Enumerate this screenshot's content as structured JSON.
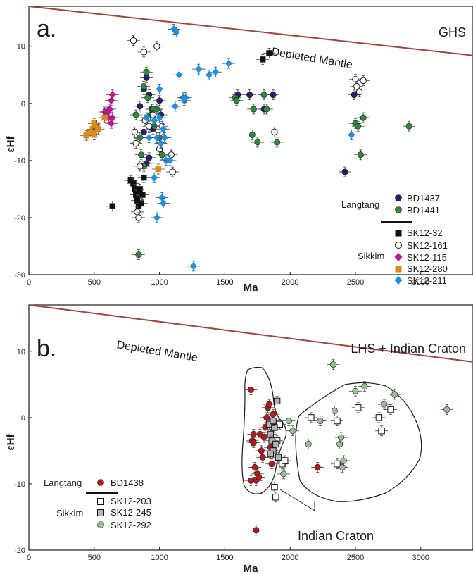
{
  "chart_data": [
    {
      "type": "scatter",
      "panel_label": "a.",
      "region_label": "GHS",
      "xlabel": "Ma",
      "ylabel": "εHf",
      "xlim": [
        0,
        3400
      ],
      "ylim": [
        -30,
        17
      ],
      "x_ticks": [
        "0",
        "500",
        "1000",
        "1500",
        "2000",
        "2500",
        "3000"
      ],
      "y_ticks": [
        "10",
        "0",
        "-10",
        "-20",
        "-30"
      ],
      "reference_line": {
        "label": "Depleted Mantle",
        "color": "#a0443c",
        "points": [
          [
            0,
            17
          ],
          [
            3400,
            8.4
          ]
        ]
      },
      "legend": {
        "groups": [
          {
            "group": "Langtang",
            "entries": [
              "BD1437",
              "BD1441"
            ]
          },
          {
            "group": "Sikkim",
            "entries": [
              "SK12-32",
              "SK12-161",
              "SK12-115",
              "SK12-280",
              "SK12-211"
            ]
          }
        ]
      },
      "series": [
        {
          "name": "BD1437",
          "marker": "circle",
          "color": "#2b1d6e",
          "points": [
            [
              850,
              -0.5
            ],
            [
              880,
              2.5
            ],
            [
              900,
              4.5
            ],
            [
              920,
              1.5
            ],
            [
              940,
              -1
            ],
            [
              950,
              -4.5
            ],
            [
              1000,
              0.5
            ],
            [
              1010,
              -2
            ],
            [
              880,
              -5
            ],
            [
              1600,
              1.5
            ],
            [
              1690,
              1.5
            ],
            [
              1800,
              -1
            ],
            [
              1870,
              1.5
            ],
            [
              2420,
              -12
            ],
            [
              2490,
              1.5
            ],
            [
              900,
              -10.5
            ],
            [
              920,
              -9.5
            ]
          ]
        },
        {
          "name": "BD1441",
          "marker": "circle",
          "color": "#2e8b3a",
          "points": [
            [
              820,
              -2
            ],
            [
              850,
              -6
            ],
            [
              880,
              3
            ],
            [
              900,
              5.5
            ],
            [
              910,
              1
            ],
            [
              930,
              -2
            ],
            [
              960,
              -4
            ],
            [
              980,
              -1
            ],
            [
              1000,
              -6
            ],
            [
              1020,
              -9
            ],
            [
              830,
              -16
            ],
            [
              840,
              -26.5
            ],
            [
              860,
              -9
            ],
            [
              1580,
              1
            ],
            [
              1590,
              0.5
            ],
            [
              1710,
              -5.5
            ],
            [
              1720,
              -1
            ],
            [
              1750,
              -6.8
            ],
            [
              1800,
              1.5
            ],
            [
              1820,
              -1
            ],
            [
              1900,
              -6.8
            ],
            [
              2500,
              -3.5
            ],
            [
              2520,
              -4
            ],
            [
              2540,
              -9
            ],
            [
              2560,
              -2.5
            ],
            [
              2910,
              -4
            ],
            [
              950,
              -1
            ],
            [
              880,
              -11
            ]
          ]
        },
        {
          "name": "SK12-32",
          "marker": "square",
          "color": "#111111",
          "points": [
            [
              640,
              -18
            ],
            [
              780,
              -13.5
            ],
            [
              800,
              -14
            ],
            [
              810,
              -15
            ],
            [
              820,
              -16
            ],
            [
              830,
              -17
            ],
            [
              840,
              -18
            ],
            [
              850,
              -15
            ],
            [
              860,
              -17.5
            ],
            [
              870,
              -16
            ],
            [
              880,
              -13
            ],
            [
              1790,
              7.7
            ],
            [
              1840,
              8.8
            ]
          ]
        },
        {
          "name": "SK12-161",
          "marker": "open-circle",
          "color": "#111111",
          "points": [
            [
              800,
              11
            ],
            [
              810,
              -5
            ],
            [
              820,
              -7
            ],
            [
              830,
              -19
            ],
            [
              840,
              -20
            ],
            [
              850,
              -11
            ],
            [
              880,
              9
            ],
            [
              890,
              -3
            ],
            [
              920,
              -4
            ],
            [
              950,
              -2
            ],
            [
              980,
              10
            ],
            [
              1000,
              -8
            ],
            [
              1020,
              -4
            ],
            [
              1090,
              -9
            ],
            [
              1100,
              -12
            ],
            [
              1880,
              -5
            ],
            [
              2500,
              4.2
            ],
            [
              2510,
              3
            ],
            [
              2530,
              2
            ],
            [
              2560,
              4
            ]
          ]
        },
        {
          "name": "SK12-115",
          "marker": "diamond",
          "color": "#c0148c",
          "points": [
            [
              580,
              -1.5
            ],
            [
              590,
              -2.5
            ],
            [
              600,
              -1.5
            ],
            [
              610,
              -2.5
            ],
            [
              620,
              -1
            ],
            [
              630,
              0.5
            ],
            [
              640,
              1.5
            ],
            [
              640,
              -2.5
            ],
            [
              630,
              -3.5
            ]
          ]
        },
        {
          "name": "SK12-280",
          "marker": "square",
          "color": "#d98c1a",
          "points": [
            [
              440,
              -5.6
            ],
            [
              470,
              -5
            ],
            [
              490,
              -4.5
            ],
            [
              500,
              -5.5
            ],
            [
              500,
              -3.5
            ],
            [
              520,
              -3.8
            ],
            [
              530,
              -4.5
            ],
            [
              580,
              -2.5
            ],
            [
              990,
              -11.5
            ]
          ]
        },
        {
          "name": "SK12-211",
          "marker": "diamond",
          "color": "#1e90e0",
          "points": [
            [
              1110,
              13
            ],
            [
              1130,
              12.5
            ],
            [
              1120,
              -0.5
            ],
            [
              1150,
              5
            ],
            [
              1180,
              1
            ],
            [
              1190,
              0.5
            ],
            [
              1200,
              1
            ],
            [
              1260,
              -28.5
            ],
            [
              1300,
              6
            ],
            [
              1380,
              5
            ],
            [
              1430,
              5.5
            ],
            [
              1530,
              7
            ],
            [
              900,
              -2.5
            ],
            [
              920,
              -6
            ],
            [
              960,
              -3
            ],
            [
              980,
              -6
            ],
            [
              1000,
              -2.5
            ],
            [
              1010,
              -7
            ],
            [
              1030,
              -4.5
            ],
            [
              1040,
              -6
            ],
            [
              1050,
              -10
            ],
            [
              1080,
              -10
            ],
            [
              1000,
              2.5
            ],
            [
              1020,
              -16.5
            ],
            [
              1030,
              -17.5
            ],
            [
              980,
              -20
            ],
            [
              960,
              -13
            ],
            [
              2470,
              -5.5
            ]
          ]
        }
      ]
    },
    {
      "type": "scatter",
      "panel_label": "b.",
      "region_label": "LHS + Indian Craton",
      "xlabel": "Ma",
      "ylabel": "εHf",
      "xlim": [
        0,
        3400
      ],
      "ylim": [
        -20,
        17
      ],
      "x_ticks": [
        "0",
        "500",
        "1000",
        "1500",
        "2000",
        "2500",
        "3000"
      ],
      "y_ticks": [
        "10",
        "0",
        "-10",
        "-20"
      ],
      "reference_line": {
        "label": "Depleted Mantle",
        "color": "#a0443c",
        "points": [
          [
            0,
            17
          ],
          [
            3400,
            8.4
          ]
        ]
      },
      "annotation": {
        "label": "Indian Craton"
      },
      "legend": {
        "groups": [
          {
            "group": "Langtang",
            "entries": [
              "BD1438"
            ]
          },
          {
            "group": "Sikkim",
            "entries": [
              "SK12-203",
              "SK12-245",
              "SK12-292"
            ]
          }
        ]
      },
      "series": [
        {
          "name": "BD1438",
          "marker": "circle",
          "color": "#b51c1c",
          "points": [
            [
              1700,
              4.2
            ],
            [
              1710,
              -3.5
            ],
            [
              1720,
              -2.5
            ],
            [
              1730,
              -7.5
            ],
            [
              1740,
              -9.5
            ],
            [
              1750,
              -8.5
            ],
            [
              1760,
              -9
            ],
            [
              1770,
              -2.5
            ],
            [
              1780,
              -5
            ],
            [
              1790,
              -6
            ],
            [
              1800,
              -3
            ],
            [
              1810,
              -1.5
            ],
            [
              1820,
              0
            ],
            [
              1830,
              1.5
            ],
            [
              1840,
              2
            ],
            [
              1850,
              -4.5
            ],
            [
              1860,
              -7
            ],
            [
              1870,
              0.5
            ],
            [
              1700,
              -9.5
            ],
            [
              1740,
              -17
            ],
            [
              2210,
              -7.5
            ],
            [
              1720,
              -3.8
            ]
          ]
        },
        {
          "name": "SK12-203",
          "marker": "open-square",
          "color": "#111111",
          "points": [
            [
              1880,
              -10.5
            ],
            [
              1890,
              -12
            ],
            [
              1900,
              -3.5
            ],
            [
              1920,
              -1
            ],
            [
              1940,
              -7
            ],
            [
              1960,
              -6.5
            ],
            [
              2160,
              0
            ],
            [
              2360,
              -7
            ],
            [
              2520,
              1.5
            ],
            [
              2680,
              0
            ],
            [
              2700,
              -2
            ],
            [
              2770,
              1.2
            ],
            [
              2360,
              -0.5
            ]
          ]
        },
        {
          "name": "SK12-245",
          "marker": "gray-square",
          "color": "#b3b3b3",
          "points": [
            [
              1840,
              -1
            ],
            [
              1850,
              -2.5
            ],
            [
              1860,
              -3.5
            ],
            [
              1870,
              -5
            ],
            [
              1880,
              -1.5
            ],
            [
              1890,
              -4
            ],
            [
              1900,
              2.5
            ],
            [
              1910,
              -6
            ],
            [
              1850,
              -5.5
            ],
            [
              1870,
              -0.5
            ]
          ]
        },
        {
          "name": "SK12-292",
          "marker": "circle",
          "color": "#98c090",
          "points": [
            [
              1950,
              -8.5
            ],
            [
              1990,
              -0.5
            ],
            [
              2020,
              -2
            ],
            [
              2140,
              -4
            ],
            [
              2230,
              -0.5
            ],
            [
              2340,
              1
            ],
            [
              2330,
              8
            ],
            [
              2380,
              -4
            ],
            [
              2400,
              -7.5
            ],
            [
              2410,
              -6.5
            ],
            [
              2500,
              4
            ],
            [
              2570,
              4.7
            ],
            [
              2720,
              2
            ],
            [
              2800,
              3.5
            ],
            [
              3200,
              1.2
            ],
            [
              2390,
              -3
            ]
          ]
        }
      ]
    }
  ]
}
